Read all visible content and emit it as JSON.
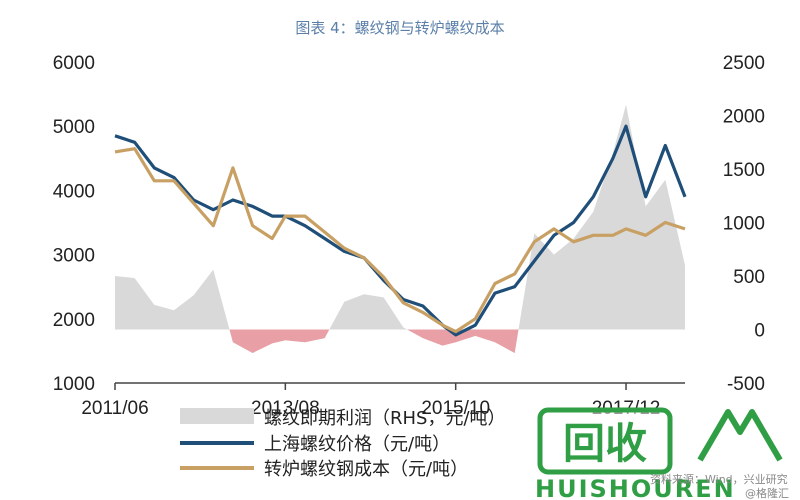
{
  "chart_data": {
    "type": "line",
    "title": "图表 4：螺纹钢与转炉螺纹成本",
    "y_left": {
      "ylim": [
        1000,
        6000
      ],
      "ticks": [
        "6000",
        "5000",
        "4000",
        "3000",
        "2000",
        "1000"
      ]
    },
    "y_right": {
      "ylim": [
        -500,
        2500
      ],
      "ticks": [
        "2500",
        "2000",
        "1500",
        "1000",
        "500",
        "0",
        "-500"
      ]
    },
    "x_ticks": [
      "2011/06",
      "2013/08",
      "2015/10",
      "2017/12"
    ],
    "x_range": [
      "2011/06",
      "2018/09"
    ],
    "legend": [
      "螺纹即期利润（RHS，元/吨）",
      "上海螺纹价格（元/吨）",
      "转炉螺纹钢成本（元/吨）"
    ],
    "series": [
      {
        "name": "螺纹即期利润（RHS，元/吨）",
        "axis": "right",
        "color": "#d9d9d9",
        "type": "area",
        "x": [
          "2011/06",
          "2011/09",
          "2011/12",
          "2012/03",
          "2012/06",
          "2012/09",
          "2012/12",
          "2013/03",
          "2013/06",
          "2013/08",
          "2013/11",
          "2014/02",
          "2014/05",
          "2014/08",
          "2014/11",
          "2015/02",
          "2015/05",
          "2015/08",
          "2015/10",
          "2016/01",
          "2016/04",
          "2016/07",
          "2016/10",
          "2017/01",
          "2017/04",
          "2017/07",
          "2017/10",
          "2017/12",
          "2018/03",
          "2018/06",
          "2018/09"
        ],
        "values": [
          500,
          480,
          230,
          180,
          320,
          560,
          -120,
          -220,
          -130,
          -100,
          -120,
          -80,
          260,
          330,
          300,
          20,
          -80,
          -150,
          -120,
          -60,
          -120,
          -220,
          900,
          700,
          850,
          1100,
          1650,
          2100,
          1150,
          1400,
          600
        ]
      },
      {
        "name": "上海螺纹价格（元/吨）",
        "axis": "left",
        "color": "#1f4e79",
        "type": "line",
        "x": [
          "2011/06",
          "2011/09",
          "2011/12",
          "2012/03",
          "2012/06",
          "2012/09",
          "2012/12",
          "2013/03",
          "2013/06",
          "2013/08",
          "2013/11",
          "2014/02",
          "2014/05",
          "2014/08",
          "2014/11",
          "2015/02",
          "2015/05",
          "2015/08",
          "2015/10",
          "2016/01",
          "2016/04",
          "2016/07",
          "2016/10",
          "2017/01",
          "2017/04",
          "2017/07",
          "2017/10",
          "2017/12",
          "2018/03",
          "2018/06",
          "2018/09"
        ],
        "values": [
          4850,
          4750,
          4350,
          4200,
          3850,
          3700,
          3850,
          3750,
          3600,
          3600,
          3450,
          3250,
          3050,
          2950,
          2600,
          2300,
          2200,
          1900,
          1750,
          1900,
          2400,
          2500,
          2900,
          3300,
          3500,
          3900,
          4500,
          5000,
          3900,
          4700,
          3900
        ]
      },
      {
        "name": "转炉螺纹钢成本（元/吨）",
        "axis": "left",
        "color": "#c8a064",
        "type": "line",
        "x": [
          "2011/06",
          "2011/09",
          "2011/12",
          "2012/03",
          "2012/06",
          "2012/09",
          "2012/12",
          "2013/03",
          "2013/06",
          "2013/08",
          "2013/11",
          "2014/02",
          "2014/05",
          "2014/08",
          "2014/11",
          "2015/02",
          "2015/05",
          "2015/08",
          "2015/10",
          "2016/01",
          "2016/04",
          "2016/07",
          "2016/10",
          "2017/01",
          "2017/04",
          "2017/07",
          "2017/10",
          "2017/12",
          "2018/03",
          "2018/06",
          "2018/09"
        ],
        "values": [
          4600,
          4650,
          4150,
          4150,
          3800,
          3450,
          4350,
          3450,
          3250,
          3600,
          3600,
          3350,
          3100,
          2950,
          2650,
          2250,
          2100,
          1900,
          1800,
          2000,
          2550,
          2700,
          3200,
          3400,
          3200,
          3300,
          3300,
          3400,
          3300,
          3500,
          3400
        ]
      }
    ]
  },
  "watermark": {
    "logo_text": "回收",
    "brand_text": "HUISHOUREN",
    "source_text": "资料来源：Wind，兴业研究",
    "credit_text": "@格隆汇"
  }
}
